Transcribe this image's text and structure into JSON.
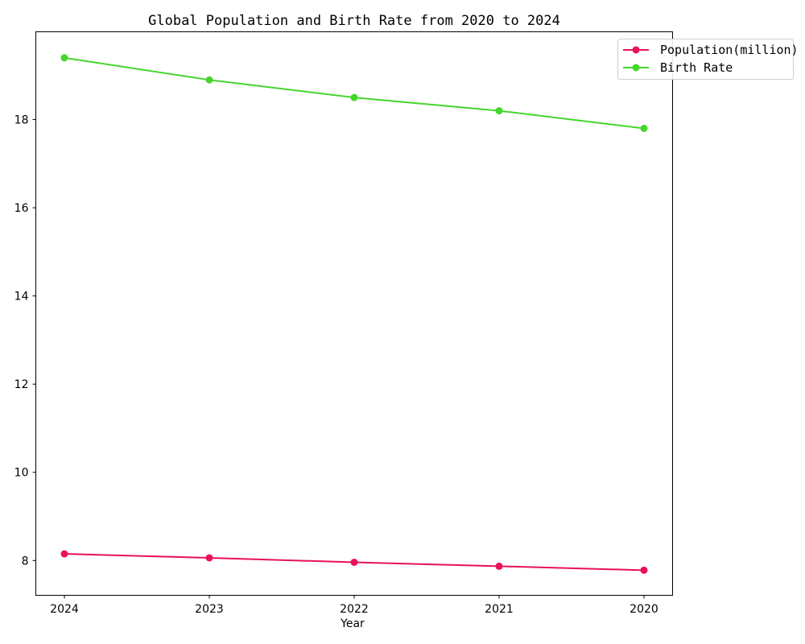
{
  "chart_data": {
    "type": "line",
    "title": "Global Population and Birth Rate from 2020 to 2024",
    "xlabel": "Year",
    "ylabel": "",
    "categories": [
      "2024",
      "2023",
      "2022",
      "2021",
      "2020"
    ],
    "series": [
      {
        "name": "Population(million)",
        "color": "#e8115b",
        "values": [
          8.15,
          8.06,
          7.96,
          7.87,
          7.78
        ]
      },
      {
        "name": "Birth Rate",
        "color": "#44d62c",
        "values": [
          19.4,
          18.9,
          18.5,
          18.2,
          17.8
        ]
      }
    ],
    "ylim": [
      7.22,
      20.0
    ],
    "yticks": [
      8,
      10,
      12,
      14,
      16,
      18
    ],
    "grid": false,
    "legend_position": "top-right"
  }
}
